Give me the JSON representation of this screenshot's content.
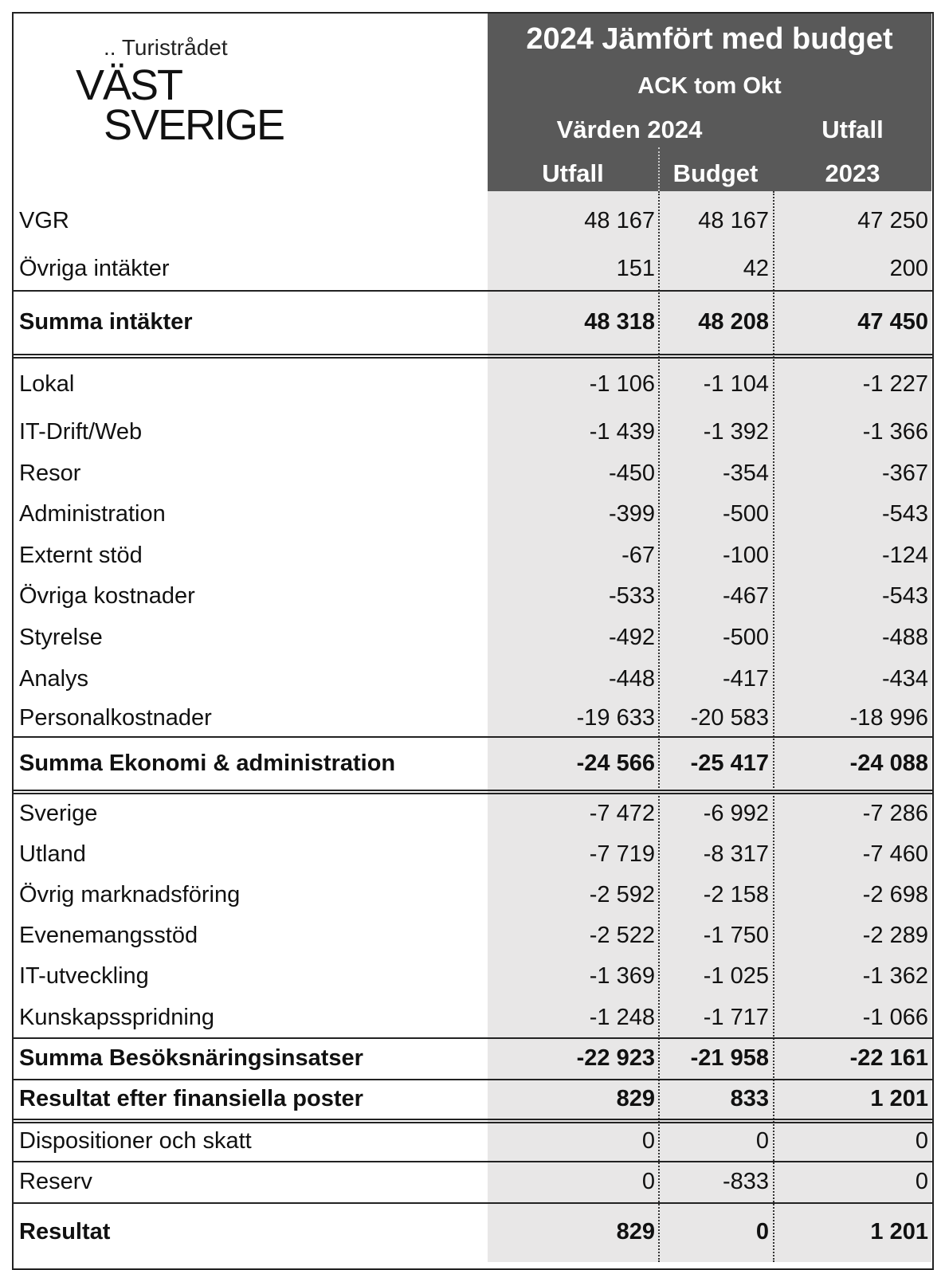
{
  "logo": {
    "tagline": ".. Turistrådet",
    "line1": "VÄST",
    "line2": "SVERIGE"
  },
  "header": {
    "title": "2024 Jämfört med budget",
    "period": "ACK tom Okt",
    "group": "Värden 2024",
    "prev_top": "Utfall",
    "col1": "Utfall",
    "col2": "Budget",
    "prev_bottom": "2023"
  },
  "table": {
    "rows": [
      [
        "VGR",
        "48 167",
        "48 167",
        "47 250"
      ],
      [
        "Övriga intäkter",
        "151",
        "42",
        "200"
      ],
      [
        "Summa intäkter",
        "48 318",
        "48 208",
        "47 450"
      ],
      [
        "Lokal",
        "-1 106",
        "-1 104",
        "-1 227"
      ],
      [
        "IT-Drift/Web",
        "-1 439",
        "-1 392",
        "-1 366"
      ],
      [
        "Resor",
        "-450",
        "-354",
        "-367"
      ],
      [
        "Administration",
        "-399",
        "-500",
        "-543"
      ],
      [
        "Externt stöd",
        "-67",
        "-100",
        "-124"
      ],
      [
        "Övriga kostnader",
        "-533",
        "-467",
        "-543"
      ],
      [
        "Styrelse",
        "-492",
        "-500",
        "-488"
      ],
      [
        "Analys",
        "-448",
        "-417",
        "-434"
      ],
      [
        "Personalkostnader",
        "-19 633",
        "-20 583",
        "-18 996"
      ],
      [
        "Summa Ekonomi & administration",
        "-24 566",
        "-25 417",
        "-24 088"
      ],
      [
        "Sverige",
        "-7 472",
        "-6 992",
        "-7 286"
      ],
      [
        "Utland",
        "-7 719",
        "-8 317",
        "-7 460"
      ],
      [
        "Övrig marknadsföring",
        "-2 592",
        "-2 158",
        "-2 698"
      ],
      [
        "Evenemangsstöd",
        "-2 522",
        "-1 750",
        "-2 289"
      ],
      [
        "IT-utveckling",
        "-1 369",
        "-1 025",
        "-1 362"
      ],
      [
        "Kunskapsspridning",
        "-1 248",
        "-1 717",
        "-1 066"
      ],
      [
        "Summa Besöksnäringsinsatser",
        "-22 923",
        "-21 958",
        "-22 161"
      ],
      [
        "Resultat efter finansiella poster",
        "829",
        "833",
        "1 201"
      ],
      [
        "Dispositioner och skatt",
        "0",
        "0",
        "0"
      ],
      [
        "Reserv",
        "0",
        "-833",
        "0"
      ],
      [
        "Resultat",
        "829",
        "0",
        "1 201"
      ]
    ]
  }
}
